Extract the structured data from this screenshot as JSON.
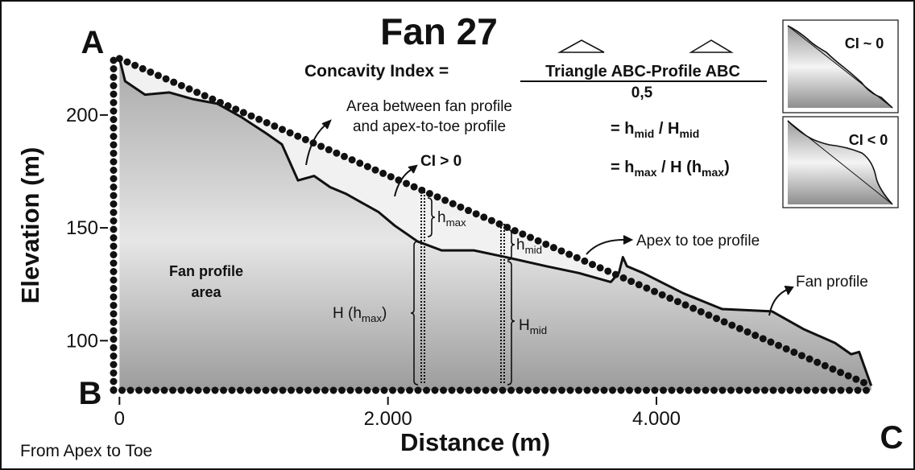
{
  "chart_data": {
    "type": "line",
    "title": "Fan 27",
    "x_label": "Distance (m)",
    "y_label": "Elevation (m)",
    "footer": "From Apex to Toe",
    "corners": [
      "A",
      "B",
      "C"
    ],
    "xlim": [
      -50,
      5650
    ],
    "ylim": [
      78,
      226
    ],
    "xticks": [
      0,
      {
        "value": 2000,
        "label": "2.000"
      },
      {
        "value": 4000,
        "label": "4.000"
      }
    ],
    "yticks": [
      100,
      150,
      200
    ],
    "series": [
      {
        "name": "Fan profile",
        "color": "#111111",
        "style": "solid",
        "x": [
          0,
          42,
          190,
          370,
          550,
          730,
          910,
          1090,
          1210,
          1330,
          1450,
          1570,
          1690,
          1810,
          1930,
          2050,
          2220,
          2400,
          2640,
          2880,
          3180,
          3420,
          3660,
          3720,
          3750,
          3780,
          3900,
          4200,
          4490,
          4860,
          5100,
          5330,
          5450,
          5510,
          5600
        ],
        "values": [
          225,
          215,
          209,
          210,
          207,
          205,
          199,
          192,
          187,
          171,
          173,
          168,
          165,
          161,
          157,
          151,
          144,
          140,
          140,
          137,
          133,
          130,
          126,
          130,
          137,
          133,
          130,
          121,
          114,
          113,
          105,
          99,
          94,
          95,
          80
        ]
      },
      {
        "name": "Apex to toe profile",
        "color": "#111111",
        "style": "dotted",
        "x": [
          0,
          5600
        ],
        "values": [
          225,
          80
        ]
      }
    ],
    "formula": {
      "lhs": "Concavity Index =",
      "numerator": "Triangle ABC-Profile ABC",
      "denominator": "0,5",
      "eq1": [
        "= h",
        "mid",
        " / H",
        "mid"
      ],
      "eq2": [
        "= h",
        "max",
        " / H (h",
        "max",
        ")"
      ]
    },
    "labels": {
      "area_between": [
        "Area between fan profile",
        "and apex-to-toe profile"
      ],
      "ci_pos": "CI > 0",
      "fan_area": [
        "Fan profile",
        "area"
      ],
      "h_max": [
        "h",
        "max"
      ],
      "h_mid": [
        "h",
        "mid"
      ],
      "H_hmax": [
        "H (h",
        "max",
        ")"
      ],
      "H_mid": [
        "H",
        "mid"
      ]
    },
    "insets": [
      "CI ~ 0",
      "CI < 0"
    ]
  }
}
